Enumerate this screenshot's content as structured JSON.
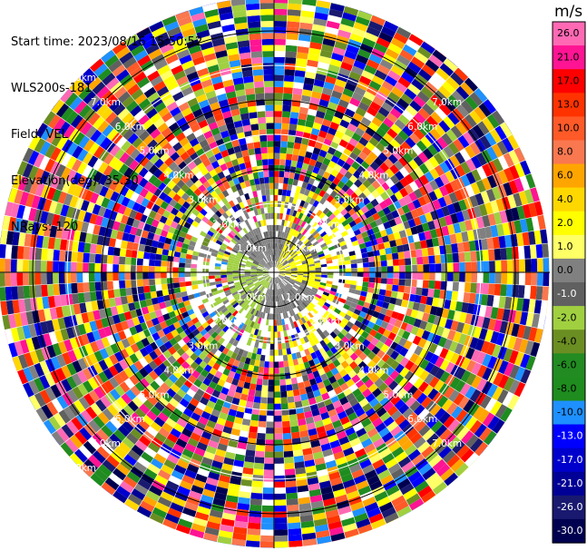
{
  "header": {
    "start_time": "Start time: 2023/08/16 15:50:52",
    "instrument": "WLS200s-181",
    "field": "Field: VEL",
    "elevation": "Elevation(deg): 35.30",
    "nrays": "NRays: 120"
  },
  "chart_data": {
    "type": "heatmap",
    "projection": "polar-ppi",
    "field": "VEL",
    "unit": "m/s",
    "nrays": 120,
    "range_ring_labels": [
      "1.0km",
      "2.0km",
      "3.0km",
      "4.0km",
      "5.0km",
      "6.0km",
      "7.0km",
      "8.0km"
    ],
    "range_rings_km": [
      1,
      2,
      3,
      4,
      5,
      6,
      7,
      8
    ],
    "max_range_km": 8,
    "colorbar": {
      "ticks": [
        "26.0",
        "21.0",
        "17.0",
        "13.0",
        "10.0",
        "8.0",
        "6.0",
        "4.0",
        "2.0",
        "1.0",
        "0.0",
        "-1.0",
        "-2.0",
        "-4.0",
        "-6.0",
        "-8.0",
        "-10.0",
        "-13.0",
        "-17.0",
        "-21.0",
        "-26.0",
        "-30.0"
      ],
      "colors": [
        "#ff69b4",
        "#ff1493",
        "#ff0000",
        "#ff3300",
        "#ff5a28",
        "#fa7850",
        "#ffa500",
        "#ffd700",
        "#ffff00",
        "#ffff66",
        "#808080",
        "#606060",
        "#a0d040",
        "#6b8e23",
        "#228b22",
        "#1e8c1e",
        "#1e90ff",
        "#0000ff",
        "#0000cd",
        "#000096",
        "#191970",
        "#000050"
      ]
    },
    "inner_core": {
      "range_km": [
        0,
        2.5
      ],
      "dominant_velocity_ms": [
        -2.0,
        2.0
      ],
      "note_values": [
        "negative sector west",
        "positive sector east"
      ]
    }
  }
}
